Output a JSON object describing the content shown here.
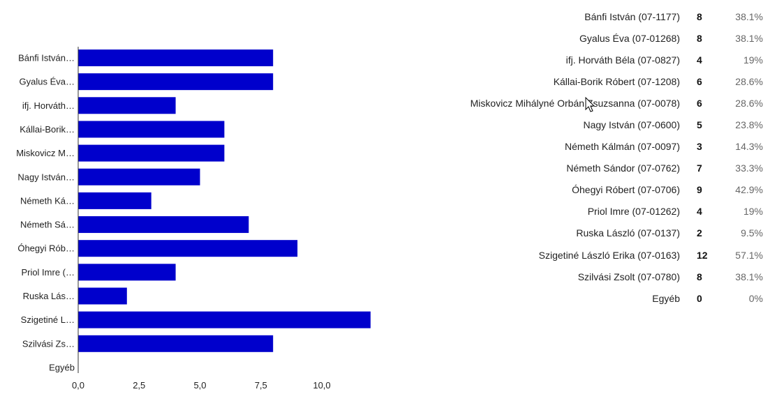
{
  "chart_data": {
    "type": "bar",
    "orientation": "horizontal",
    "categories": [
      "Bánfi István…",
      "Gyalus Éva…",
      "ifj. Horváth…",
      "Kállai-Borik…",
      "Miskovicz M…",
      "Nagy István…",
      "Németh Ká…",
      "Németh Sá…",
      "Óhegyi Rób…",
      "Priol Imre (…",
      "Ruska Lás…",
      "Szigetiné L…",
      "Szilvási Zs…",
      "Egyéb"
    ],
    "values": [
      8,
      8,
      4,
      6,
      6,
      5,
      3,
      7,
      9,
      4,
      2,
      12,
      8,
      0
    ],
    "xticks": [
      "0,0",
      "2,5",
      "5,0",
      "7,5",
      "10,0"
    ],
    "xtick_values": [
      0,
      2.5,
      5,
      7.5,
      10
    ],
    "xlim": [
      0,
      12
    ],
    "bar_color": "#0000cc",
    "grid": false
  },
  "summary": {
    "rows": [
      {
        "name": "Bánfi István (07-1177)",
        "count": "8",
        "percent": "38.1%"
      },
      {
        "name": "Gyalus Éva (07-01268)",
        "count": "8",
        "percent": "38.1%"
      },
      {
        "name": "ifj. Horváth Béla (07-0827)",
        "count": "4",
        "percent": "19%"
      },
      {
        "name": "Kállai-Borik Róbert (07-1208)",
        "count": "6",
        "percent": "28.6%"
      },
      {
        "name": "Miskovicz Mihályné Orbán Zsuzsanna (07-0078)",
        "count": "6",
        "percent": "28.6%"
      },
      {
        "name": "Nagy István (07-0600)",
        "count": "5",
        "percent": "23.8%"
      },
      {
        "name": "Németh Kálmán (07-0097)",
        "count": "3",
        "percent": "14.3%"
      },
      {
        "name": "Németh Sándor (07-0762)",
        "count": "7",
        "percent": "33.3%"
      },
      {
        "name": "Óhegyi Róbert (07-0706)",
        "count": "9",
        "percent": "42.9%"
      },
      {
        "name": "Priol Imre (07-01262)",
        "count": "4",
        "percent": "19%"
      },
      {
        "name": "Ruska László (07-0137)",
        "count": "2",
        "percent": "9.5%"
      },
      {
        "name": "Szigetiné László Erika (07-0163)",
        "count": "12",
        "percent": "57.1%"
      },
      {
        "name": "Szilvási Zsolt (07-0780)",
        "count": "8",
        "percent": "38.1%"
      },
      {
        "name": "Egyéb",
        "count": "0",
        "percent": "0%"
      }
    ]
  },
  "cursor": {
    "icon": "mouse-pointer-icon"
  }
}
